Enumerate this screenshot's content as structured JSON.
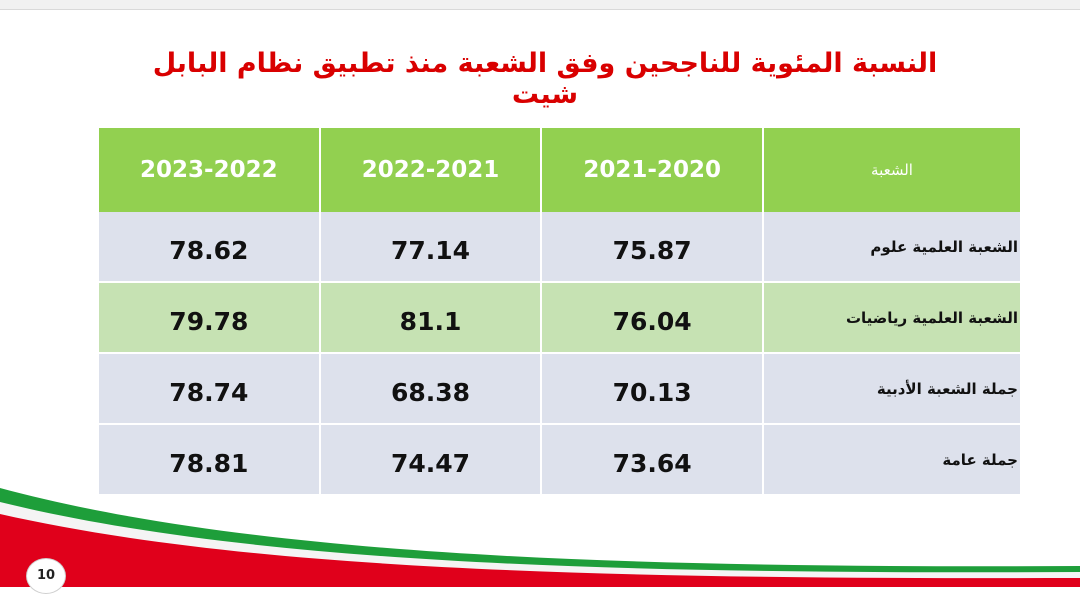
{
  "title": "النسبة المئوية للناجحين وفق الشعبة منذ تطبيق نظام البابل شيت",
  "table": {
    "headers": [
      "الشعبة",
      "2021-2020",
      "2022-2021",
      "2023-2022"
    ],
    "rows": [
      {
        "label": "الشعبة العلمية علوم",
        "values": [
          "75.87",
          "77.14",
          "78.62"
        ]
      },
      {
        "label": "الشعبة العلمية رياضيات",
        "values": [
          "76.04",
          "81.1",
          "79.78"
        ]
      },
      {
        "label": "جملة الشعبة الأدبية",
        "values": [
          "70.13",
          "68.38",
          "78.74"
        ]
      },
      {
        "label": "جملة عامة",
        "values": [
          "73.64",
          "74.47",
          "78.81"
        ]
      }
    ]
  },
  "page_number": "10",
  "colors": {
    "title": "#d90000",
    "header_bg": "#92d050",
    "row_bg": "#dde1ec",
    "row_alt_bg": "#c6e2b3",
    "swoosh_green": "#1e9e3a",
    "swoosh_red": "#e0001b"
  }
}
